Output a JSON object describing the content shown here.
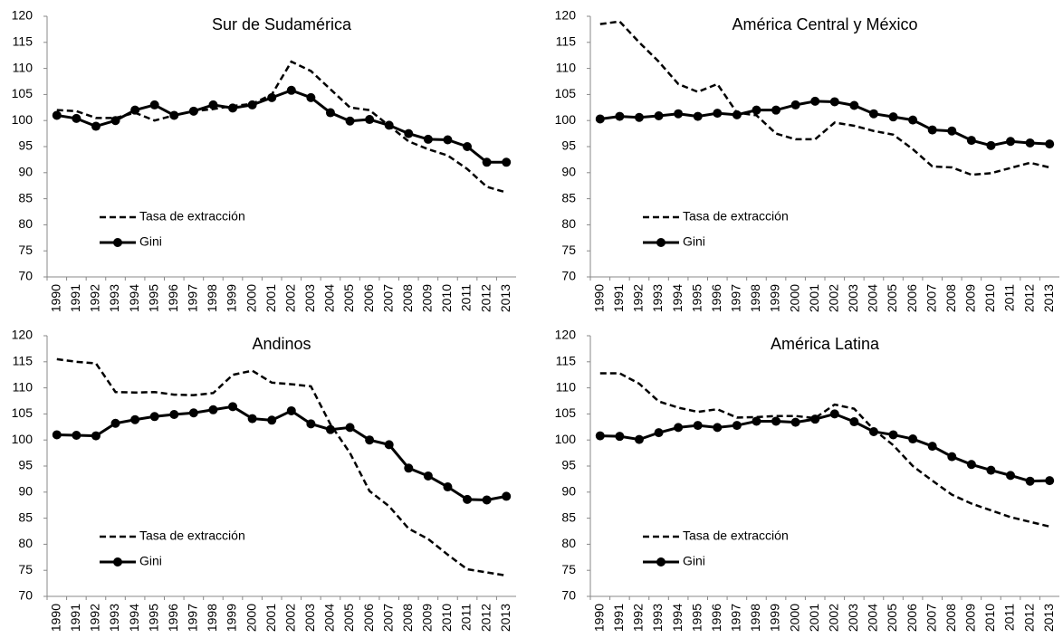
{
  "chart_data": [
    {
      "type": "line",
      "title": "Sur de Sudamérica",
      "categories": [
        "1990",
        "1991",
        "1992",
        "1993",
        "1994",
        "1995",
        "1996",
        "1997",
        "1998",
        "1999",
        "2000",
        "2001",
        "2002",
        "2003",
        "2004",
        "2005",
        "2006",
        "2007",
        "2008",
        "2009",
        "2010",
        "2011",
        "2012",
        "2013"
      ],
      "series": [
        {
          "name": "Tasa de extracción",
          "color": "#000000",
          "dashed": true,
          "values": [
            102,
            101.8,
            100.5,
            100.5,
            101.5,
            100,
            101,
            101.8,
            102.2,
            102.8,
            103.2,
            105,
            111.3,
            109.5,
            106,
            102.5,
            102,
            99,
            96,
            94.5,
            93.3,
            90.7,
            87.3,
            86.2
          ]
        },
        {
          "name": "Gini",
          "color": "#000000",
          "marker": "circle",
          "values": [
            101,
            100.4,
            98.9,
            100,
            102,
            103,
            101,
            101.8,
            103,
            102.4,
            103,
            104.4,
            105.8,
            104.4,
            101.5,
            99.9,
            100.2,
            99.1,
            97.5,
            96.4,
            96.3,
            95,
            92,
            92
          ]
        }
      ],
      "ylim": [
        70,
        120
      ],
      "yticks": [
        70,
        75,
        80,
        85,
        90,
        95,
        100,
        105,
        110,
        115,
        120
      ],
      "legend": "lower left",
      "grid": false
    },
    {
      "type": "line",
      "title": "América Central y México",
      "categories": [
        "1990",
        "1991",
        "1992",
        "1993",
        "1994",
        "1995",
        "1996",
        "1997",
        "1998",
        "1999",
        "2000",
        "2001",
        "2002",
        "2003",
        "2004",
        "2005",
        "2006",
        "2007",
        "2008",
        "2009",
        "2010",
        "2011",
        "2012",
        "2013"
      ],
      "series": [
        {
          "name": "Tasa de extracción",
          "color": "#000000",
          "dashed": true,
          "values": [
            118.5,
            119,
            115,
            111.3,
            107,
            105.5,
            107,
            101.5,
            101,
            97.5,
            96.4,
            96.4,
            99.6,
            99,
            98,
            97.3,
            94.5,
            91.2,
            91,
            89.6,
            89.9,
            90.9,
            91.9,
            91
          ]
        },
        {
          "name": "Gini",
          "color": "#000000",
          "marker": "circle",
          "values": [
            100.3,
            100.8,
            100.6,
            100.9,
            101.3,
            100.8,
            101.4,
            101.1,
            102,
            102,
            103,
            103.7,
            103.6,
            102.9,
            101.3,
            100.7,
            100.1,
            98.2,
            98,
            96.2,
            95.2,
            96,
            95.7,
            95.5
          ]
        }
      ],
      "ylim": [
        70,
        120
      ],
      "yticks": [
        70,
        75,
        80,
        85,
        90,
        95,
        100,
        105,
        110,
        115,
        120
      ],
      "legend": "lower left",
      "grid": false
    },
    {
      "type": "line",
      "title": "Andinos",
      "categories": [
        "1990",
        "1991",
        "1992",
        "1993",
        "1994",
        "1995",
        "1996",
        "1997",
        "1998",
        "1999",
        "2000",
        "2001",
        "2002",
        "2003",
        "2004",
        "2005",
        "2006",
        "2007",
        "2008",
        "2009",
        "2010",
        "2011",
        "2012",
        "2013"
      ],
      "series": [
        {
          "name": "Tasa de extracción",
          "color": "#000000",
          "dashed": true,
          "values": [
            115.5,
            115,
            114.7,
            109.2,
            109.1,
            109.2,
            108.7,
            108.6,
            109,
            112.5,
            113.3,
            111,
            110.7,
            110.3,
            103,
            97.5,
            90.2,
            87.3,
            83,
            81,
            78,
            75.2,
            74.6,
            74
          ]
        },
        {
          "name": "Gini",
          "color": "#000000",
          "marker": "circle",
          "values": [
            101,
            100.9,
            100.8,
            103.2,
            103.9,
            104.5,
            104.9,
            105.2,
            105.8,
            106.4,
            104.1,
            103.8,
            105.6,
            103.1,
            102,
            102.4,
            100,
            99.1,
            94.6,
            93.1,
            91,
            88.6,
            88.5,
            89.2
          ]
        }
      ],
      "ylim": [
        70,
        120
      ],
      "yticks": [
        70,
        75,
        80,
        85,
        90,
        95,
        100,
        105,
        110,
        115,
        120
      ],
      "legend": "lower left",
      "grid": false
    },
    {
      "type": "line",
      "title": "América Latina",
      "categories": [
        "1990",
        "1991",
        "1992",
        "1993",
        "1994",
        "1995",
        "1996",
        "1997",
        "1998",
        "1999",
        "2000",
        "2001",
        "2002",
        "2003",
        "2004",
        "2005",
        "2006",
        "2007",
        "2008",
        "2009",
        "2010",
        "2011",
        "2012",
        "2013"
      ],
      "series": [
        {
          "name": "Tasa de extracción",
          "color": "#000000",
          "dashed": true,
          "values": [
            112.8,
            112.8,
            110.8,
            107.4,
            106.2,
            105.4,
            105.9,
            104.3,
            104.4,
            104.6,
            104.6,
            104.2,
            106.8,
            106,
            102,
            99,
            95,
            92.2,
            89.5,
            87.8,
            86.5,
            85.2,
            84.3,
            83.4
          ]
        },
        {
          "name": "Gini",
          "color": "#000000",
          "marker": "circle",
          "values": [
            100.8,
            100.7,
            100.1,
            101.4,
            102.4,
            102.8,
            102.4,
            102.8,
            103.6,
            103.6,
            103.4,
            104,
            105,
            103.5,
            101.6,
            101,
            100.2,
            98.8,
            96.8,
            95.3,
            94.2,
            93.2,
            92.1,
            92.2
          ]
        }
      ],
      "ylim": [
        70,
        120
      ],
      "yticks": [
        70,
        75,
        80,
        85,
        90,
        95,
        100,
        105,
        110,
        115,
        120
      ],
      "legend": "lower left",
      "grid": false
    }
  ]
}
